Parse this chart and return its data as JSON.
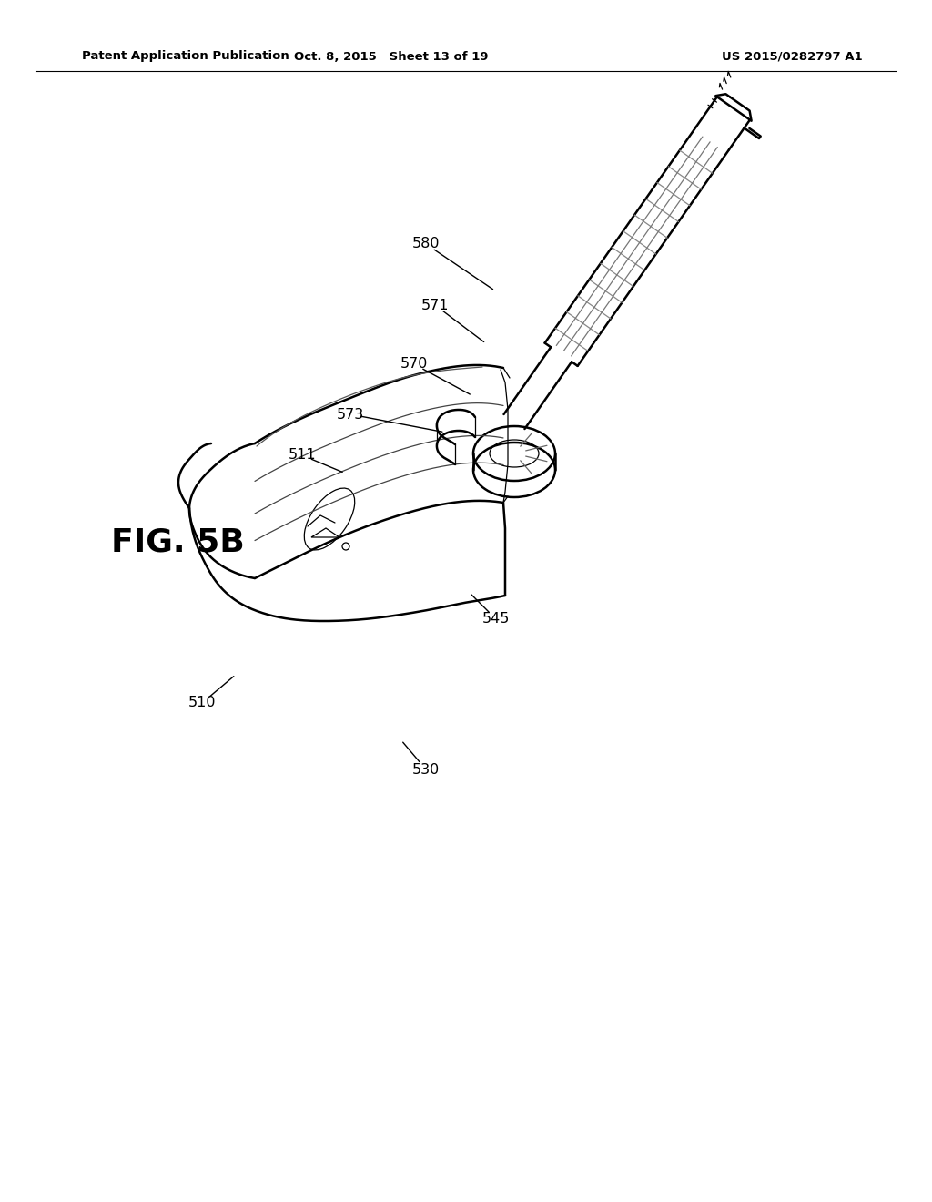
{
  "background_color": "#ffffff",
  "header_left": "Patent Application Publication",
  "header_center": "Oct. 8, 2015   Sheet 13 of 19",
  "header_right": "US 2015/0282797 A1",
  "fig_label": "FIG. 5B",
  "line_color": "#000000",
  "text_color": "#000000",
  "lw_main": 1.8,
  "lw_thin": 0.9,
  "lw_hair": 0.6
}
